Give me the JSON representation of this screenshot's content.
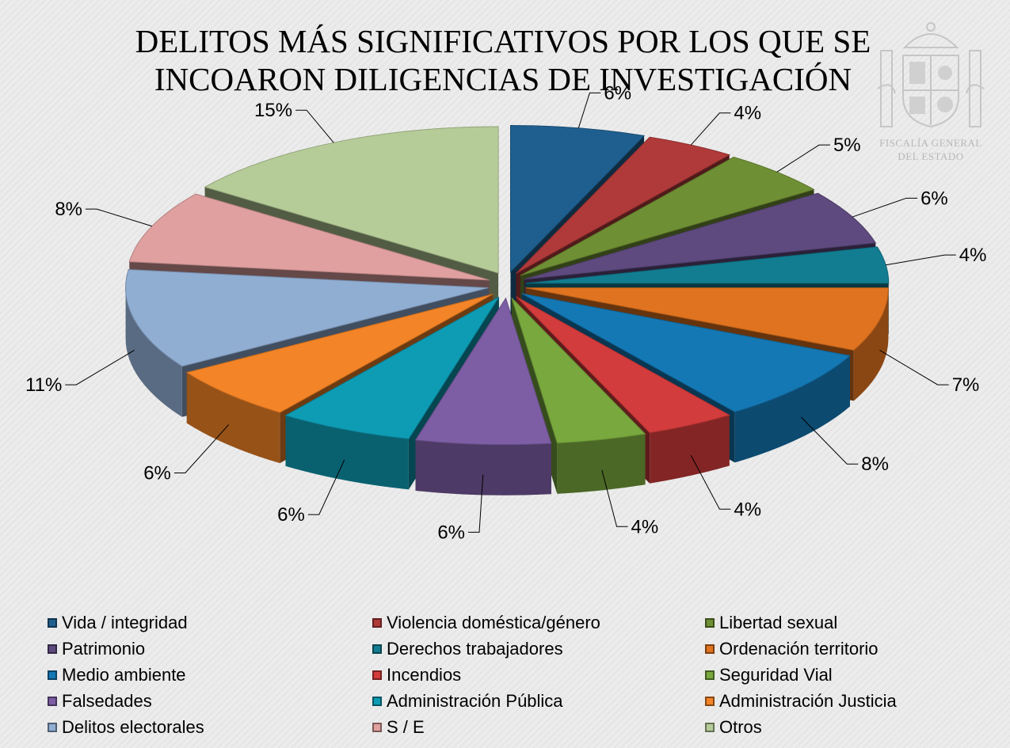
{
  "title_lines": [
    "DELITOS MÁS SIGNIFICATIVOS POR LOS QUE SE",
    "INCOARON DILIGENCIAS DE INVESTIGACIÓN"
  ],
  "emblem": {
    "icon": "spanish-coat-of-arms-icon",
    "caption_lines": [
      "FISCALÍA GENERAL",
      "DEL ESTADO"
    ]
  },
  "chart_data": {
    "type": "pie",
    "style": "3d-exploded",
    "title": "DELITOS MÁS SIGNIFICATIVOS POR LOS QUE SE INCOARON DILIGENCIAS DE INVESTIGACIÓN",
    "legend_position": "bottom",
    "categories": [
      "Vida / integridad",
      "Violencia doméstica/género",
      "Libertad sexual",
      "Patrimonio",
      "Derechos trabajadores",
      "Ordenación territorio",
      "Medio ambiente",
      "Incendios",
      "Seguridad Vial",
      "Falsedades",
      "Administración Pública",
      "Administración Justicia",
      "Delitos electorales",
      "S / E",
      "Otros"
    ],
    "values": [
      6,
      4,
      5,
      6,
      4,
      7,
      8,
      4,
      4,
      6,
      6,
      6,
      11,
      8,
      15
    ],
    "data_labels": [
      "6%",
      "4%",
      "5%",
      "6%",
      "4%",
      "7%",
      "8%",
      "4%",
      "4%",
      "6%",
      "6%",
      "6%",
      "11%",
      "8%",
      "15%"
    ],
    "colors": [
      "#1f5f8f",
      "#b03a3a",
      "#6f8f34",
      "#5e4a7e",
      "#127d91",
      "#e0731f",
      "#1478b4",
      "#d33c3c",
      "#79a83e",
      "#7d5ea4",
      "#0e9cb4",
      "#f38427",
      "#90add2",
      "#e0a0a0",
      "#b6cc98"
    ]
  }
}
